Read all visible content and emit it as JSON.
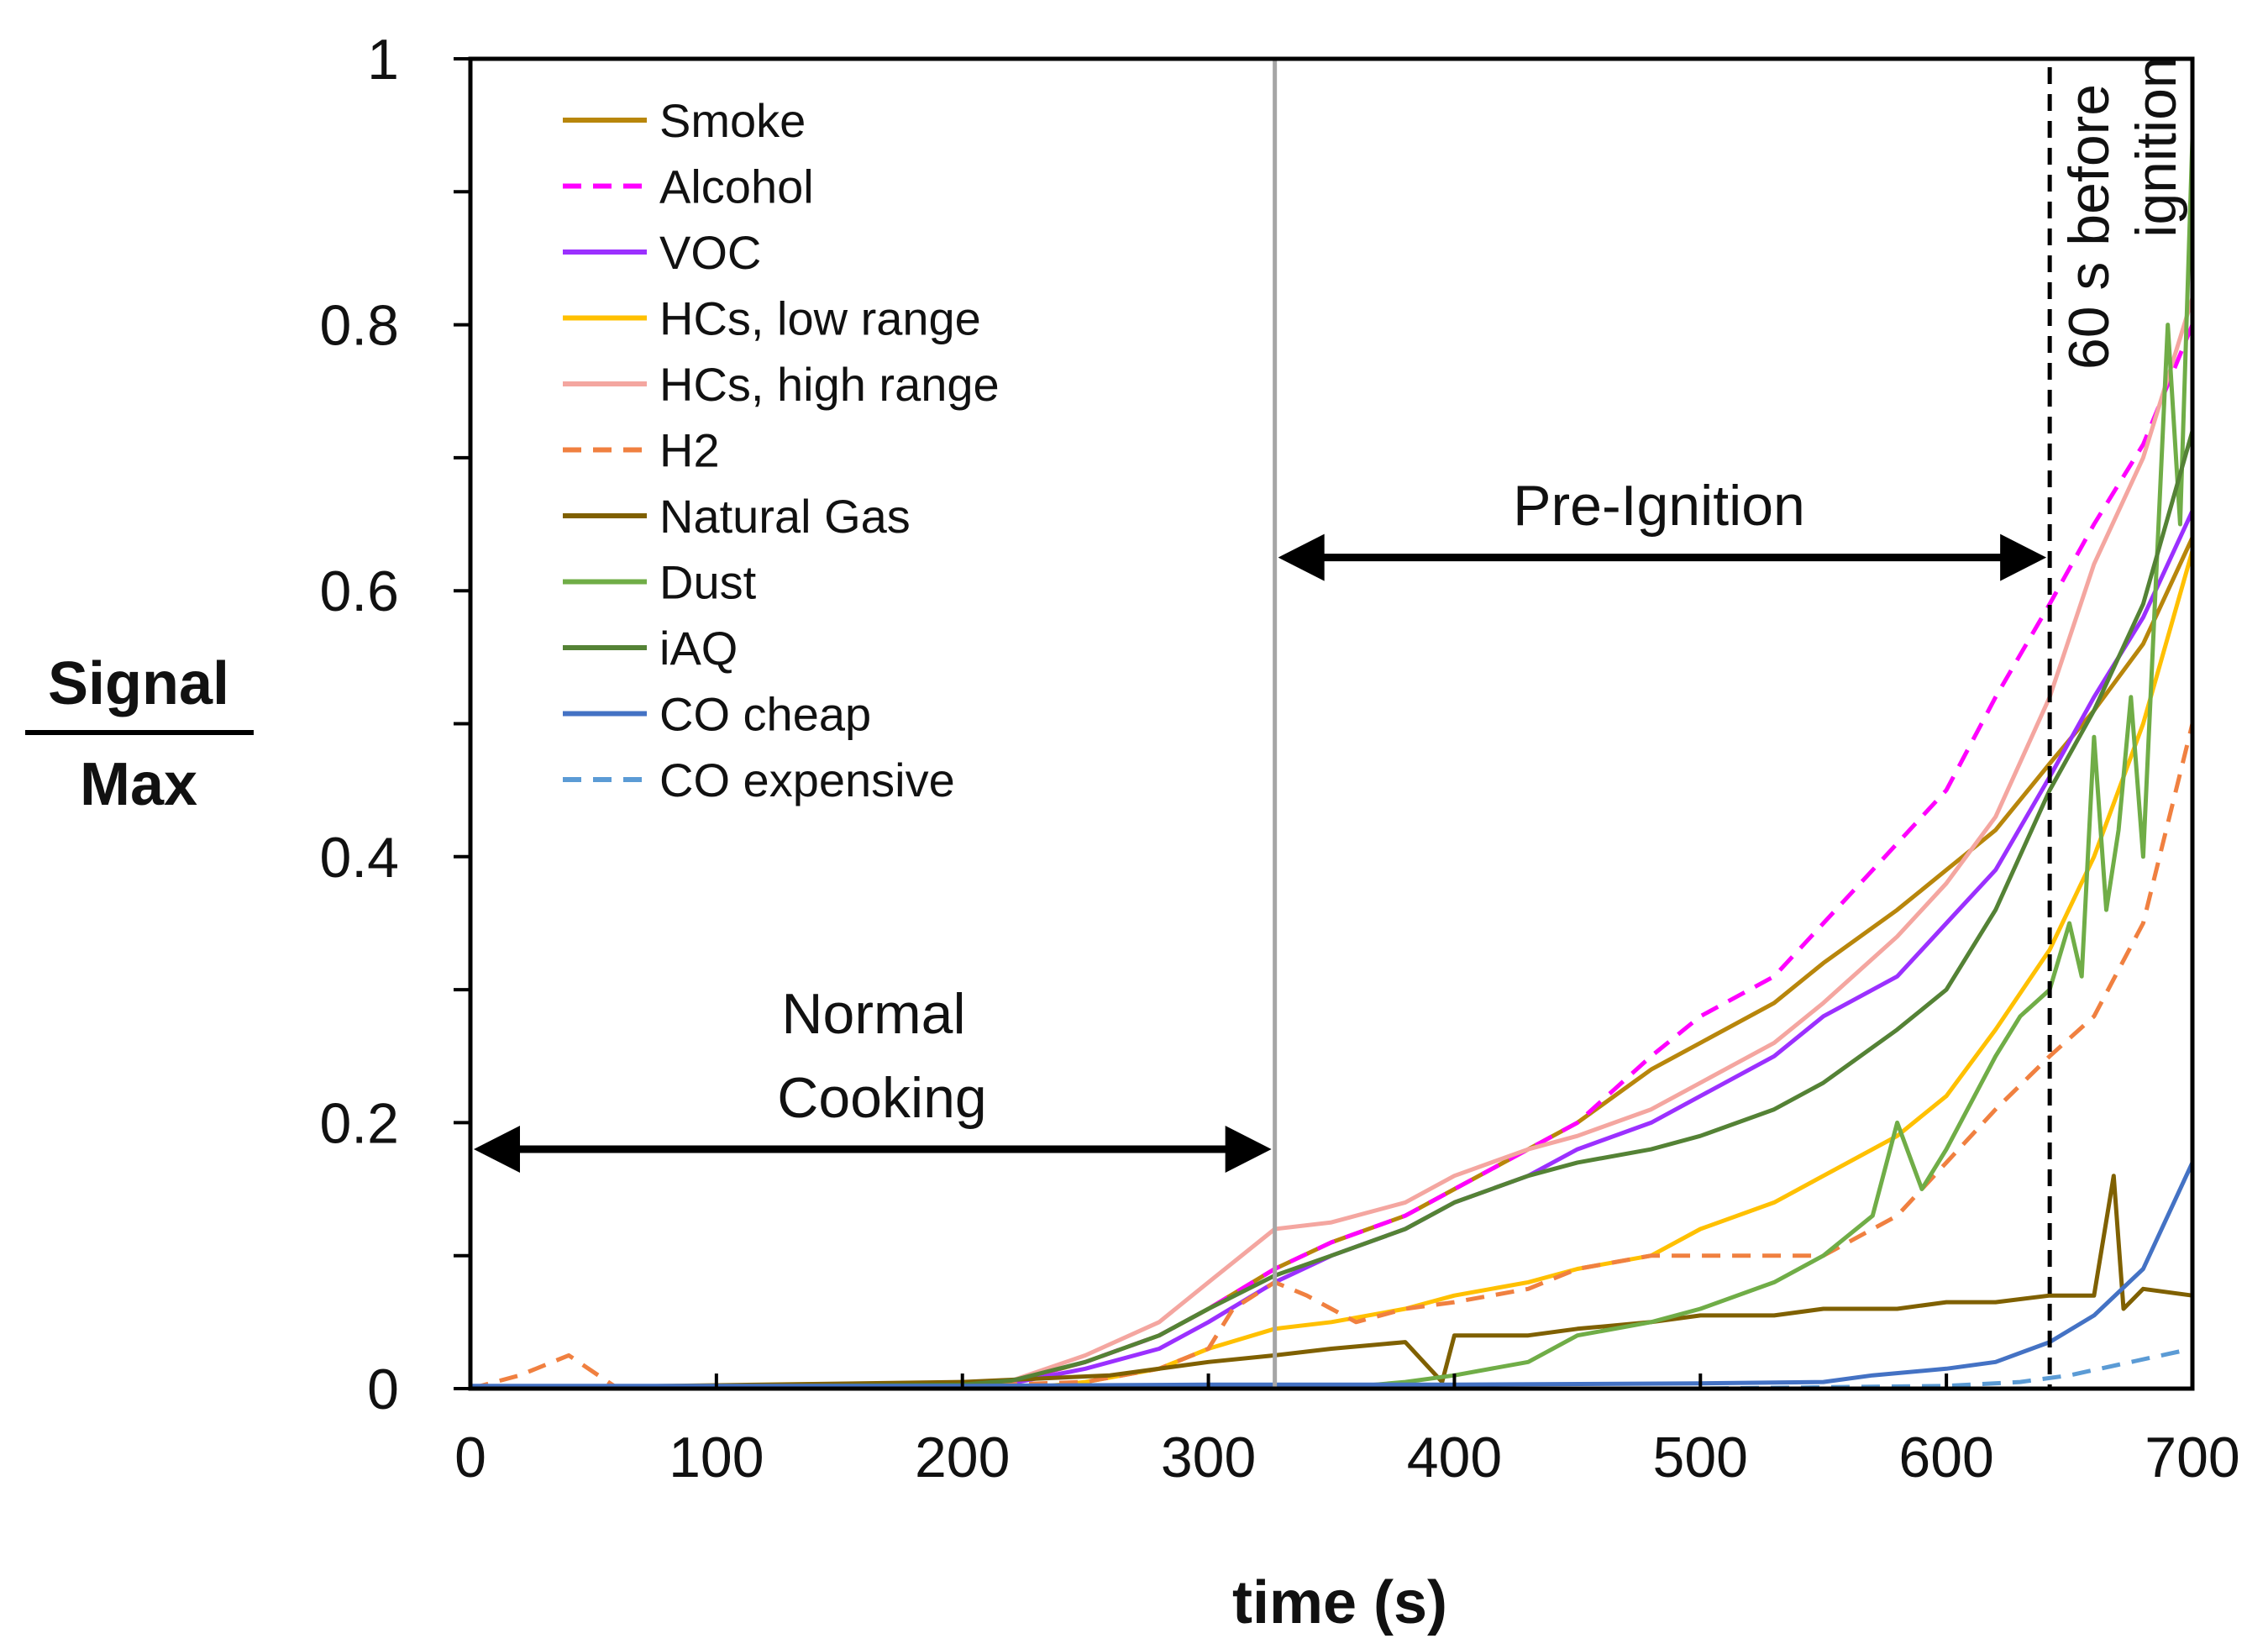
{
  "chart_data": {
    "type": "line",
    "xlabel": "time (s)",
    "ylabel_top": "Signal",
    "ylabel_bottom": "Max",
    "xlim": [
      0,
      700
    ],
    "ylim": [
      0,
      1
    ],
    "xticks": [
      0,
      100,
      200,
      300,
      400,
      500,
      600,
      700
    ],
    "yticks": [
      0,
      0.2,
      0.4,
      0.6,
      0.8,
      1
    ],
    "ytick_labels": [
      "0",
      "0.2",
      "0.4",
      "0.6",
      "0.8",
      "1"
    ],
    "grid": false,
    "legend_position": "top-left",
    "annotations": {
      "normal_line1": "Normal",
      "normal_line2": "Cooking",
      "pre_ignition": "Pre-Ignition",
      "before_line1": "60 s before",
      "before_line2": "ignition"
    },
    "markers": {
      "pre_ignition_start_x": 327,
      "ignition_minus_60_x": 642,
      "normal_span": [
        0,
        327
      ],
      "pre_ignition_span": [
        327,
        642
      ],
      "arrow_y_normal": 0.18,
      "arrow_y_pre": 0.625
    },
    "series": [
      {
        "name": "Smoke",
        "color": "#B8860B",
        "dash": false,
        "x": [
          0,
          200,
          220,
          250,
          280,
          300,
          327,
          350,
          380,
          400,
          430,
          450,
          480,
          500,
          530,
          550,
          580,
          600,
          620,
          642,
          660,
          680,
          700
        ],
        "y": [
          0,
          0.003,
          0.005,
          0.02,
          0.04,
          0.06,
          0.09,
          0.11,
          0.13,
          0.15,
          0.18,
          0.2,
          0.24,
          0.26,
          0.29,
          0.32,
          0.36,
          0.39,
          0.42,
          0.47,
          0.51,
          0.56,
          0.64
        ]
      },
      {
        "name": "Alcohol",
        "color": "#FF00FF",
        "dash": true,
        "x": [
          0,
          200,
          220,
          250,
          280,
          300,
          327,
          350,
          380,
          400,
          430,
          450,
          480,
          500,
          530,
          550,
          580,
          600,
          620,
          642,
          660,
          680,
          700
        ],
        "y": [
          0,
          0.002,
          0.005,
          0.02,
          0.04,
          0.06,
          0.09,
          0.11,
          0.13,
          0.15,
          0.18,
          0.2,
          0.25,
          0.28,
          0.31,
          0.35,
          0.41,
          0.45,
          0.52,
          0.59,
          0.65,
          0.71,
          0.8
        ]
      },
      {
        "name": "VOC",
        "color": "#9B30FF",
        "dash": false,
        "x": [
          0,
          200,
          220,
          250,
          280,
          300,
          327,
          350,
          380,
          400,
          430,
          450,
          480,
          500,
          530,
          550,
          580,
          600,
          620,
          642,
          660,
          680,
          700
        ],
        "y": [
          0,
          0.002,
          0.004,
          0.015,
          0.03,
          0.05,
          0.08,
          0.1,
          0.12,
          0.14,
          0.16,
          0.18,
          0.2,
          0.22,
          0.25,
          0.28,
          0.31,
          0.35,
          0.39,
          0.46,
          0.52,
          0.58,
          0.66
        ]
      },
      {
        "name": "HCs, low range",
        "color": "#FFC000",
        "dash": false,
        "x": [
          0,
          230,
          250,
          280,
          300,
          327,
          350,
          380,
          400,
          430,
          450,
          480,
          500,
          530,
          550,
          580,
          600,
          620,
          642,
          660,
          680,
          700
        ],
        "y": [
          0,
          0.001,
          0.005,
          0.015,
          0.03,
          0.045,
          0.05,
          0.06,
          0.07,
          0.08,
          0.09,
          0.1,
          0.12,
          0.14,
          0.16,
          0.19,
          0.22,
          0.27,
          0.33,
          0.4,
          0.5,
          0.63
        ]
      },
      {
        "name": "HCs, high range",
        "color": "#F4A6A0",
        "dash": false,
        "x": [
          0,
          200,
          220,
          250,
          280,
          300,
          327,
          350,
          380,
          400,
          430,
          450,
          480,
          500,
          530,
          550,
          580,
          600,
          620,
          642,
          660,
          680,
          700
        ],
        "y": [
          0,
          0.002,
          0.006,
          0.025,
          0.05,
          0.08,
          0.12,
          0.125,
          0.14,
          0.16,
          0.18,
          0.19,
          0.21,
          0.23,
          0.26,
          0.29,
          0.34,
          0.38,
          0.43,
          0.52,
          0.62,
          0.7,
          0.82
        ]
      },
      {
        "name": "H2",
        "color": "#F08040",
        "dash": true,
        "x": [
          0,
          20,
          40,
          60,
          200,
          250,
          280,
          300,
          310,
          327,
          340,
          350,
          360,
          380,
          400,
          430,
          450,
          480,
          500,
          530,
          550,
          580,
          600,
          620,
          642,
          660,
          680,
          700
        ],
        "y": [
          0,
          0.01,
          0.025,
          0,
          0.002,
          0.005,
          0.015,
          0.03,
          0.06,
          0.08,
          0.07,
          0.06,
          0.05,
          0.06,
          0.065,
          0.075,
          0.09,
          0.1,
          0.1,
          0.1,
          0.1,
          0.13,
          0.17,
          0.21,
          0.25,
          0.28,
          0.35,
          0.5
        ]
      },
      {
        "name": "Natural Gas",
        "color": "#7F6000",
        "dash": false,
        "x": [
          0,
          200,
          260,
          300,
          327,
          350,
          380,
          395,
          400,
          430,
          450,
          480,
          500,
          530,
          550,
          580,
          600,
          620,
          642,
          660,
          668,
          672,
          680,
          700
        ],
        "y": [
          0,
          0.005,
          0.01,
          0.02,
          0.025,
          0.03,
          0.035,
          0.005,
          0.04,
          0.04,
          0.045,
          0.05,
          0.055,
          0.055,
          0.06,
          0.06,
          0.065,
          0.065,
          0.07,
          0.07,
          0.16,
          0.06,
          0.075,
          0.07
        ]
      },
      {
        "name": "Dust",
        "color": "#70AD47",
        "dash": false,
        "x": [
          0,
          350,
          380,
          400,
          430,
          450,
          480,
          500,
          530,
          550,
          570,
          580,
          590,
          600,
          620,
          630,
          642,
          650,
          655,
          660,
          665,
          670,
          675,
          680,
          690,
          695,
          700
        ],
        "y": [
          0,
          0,
          0.005,
          0.01,
          0.02,
          0.04,
          0.05,
          0.06,
          0.08,
          0.1,
          0.13,
          0.2,
          0.15,
          0.18,
          0.25,
          0.28,
          0.3,
          0.35,
          0.31,
          0.49,
          0.36,
          0.42,
          0.52,
          0.4,
          0.8,
          0.65,
          0.94
        ]
      },
      {
        "name": "iAQ",
        "color": "#548235",
        "dash": false,
        "x": [
          0,
          200,
          220,
          250,
          280,
          300,
          327,
          350,
          380,
          400,
          430,
          450,
          480,
          500,
          530,
          550,
          580,
          600,
          620,
          642,
          660,
          680,
          700
        ],
        "y": [
          0,
          0.003,
          0.006,
          0.02,
          0.04,
          0.06,
          0.085,
          0.1,
          0.12,
          0.14,
          0.16,
          0.17,
          0.18,
          0.19,
          0.21,
          0.23,
          0.27,
          0.3,
          0.36,
          0.45,
          0.51,
          0.59,
          0.72
        ]
      },
      {
        "name": "CO cheap",
        "color": "#4472C4",
        "dash": false,
        "x": [
          0,
          100,
          200,
          300,
          400,
          500,
          550,
          570,
          600,
          620,
          642,
          660,
          680,
          700
        ],
        "y": [
          0.002,
          0.002,
          0.002,
          0.003,
          0.003,
          0.004,
          0.005,
          0.01,
          0.015,
          0.02,
          0.035,
          0.055,
          0.09,
          0.17
        ]
      },
      {
        "name": "CO expensive",
        "color": "#5B9BD5",
        "dash": true,
        "x": [
          0,
          300,
          500,
          600,
          630,
          650,
          670,
          690,
          700
        ],
        "y": [
          0,
          0,
          0,
          0.002,
          0.005,
          0.01,
          0.018,
          0.026,
          0.03
        ]
      }
    ]
  }
}
